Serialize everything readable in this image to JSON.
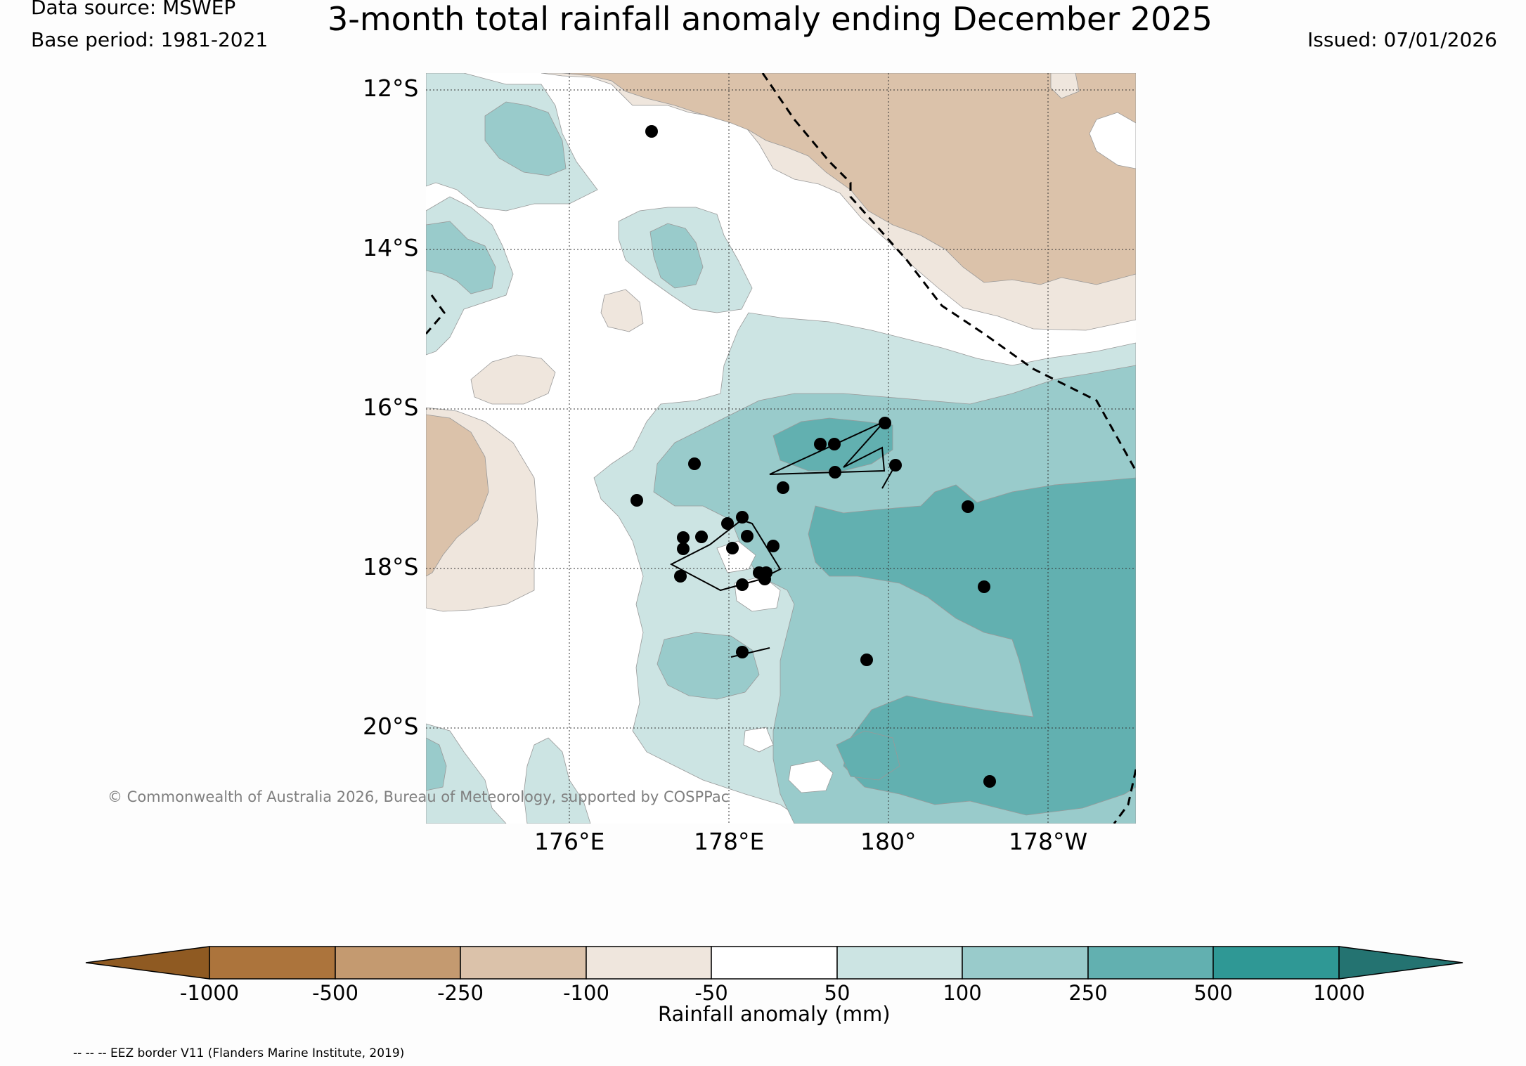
{
  "header": {
    "data_source": "Data source: MSWEP",
    "base_period": "Base period: 1981-2021",
    "title": "3-month total rainfall anomaly ending December 2025",
    "issued": "Issued: 07/01/2026"
  },
  "map": {
    "lat_labels": [
      "12°S",
      "14°S",
      "16°S",
      "18°S",
      "20°S"
    ],
    "lon_labels": [
      "176°E",
      "178°E",
      "180°",
      "178°W"
    ],
    "copyright": "© Commonwealth of Australia 2026, Bureau of Meteorology, supported by COSPPac",
    "stations_count": 27
  },
  "legend": {
    "label": "Rainfall anomaly (mm)",
    "ticks": [
      "-1000",
      "-500",
      "-250",
      "-100",
      "-50",
      "50",
      "100",
      "250",
      "500",
      "1000"
    ],
    "colors": {
      "lt_-1000": "#8f5a22",
      "-1000_-500": "#ac743c",
      "-500_-250": "#c49a70",
      "-250_-100": "#dbc2aa",
      "-100_-50": "#efe6dd",
      "-50_50": "#ffffff",
      "50_100": "#cce4e3",
      "100_250": "#99cbcb",
      "250_500": "#62b0b0",
      "500_1000": "#2f9895",
      "gt_1000": "#247371"
    }
  },
  "footnote": "-- -- -- EEZ border V11 (Flanders Marine Institute, 2019)"
}
